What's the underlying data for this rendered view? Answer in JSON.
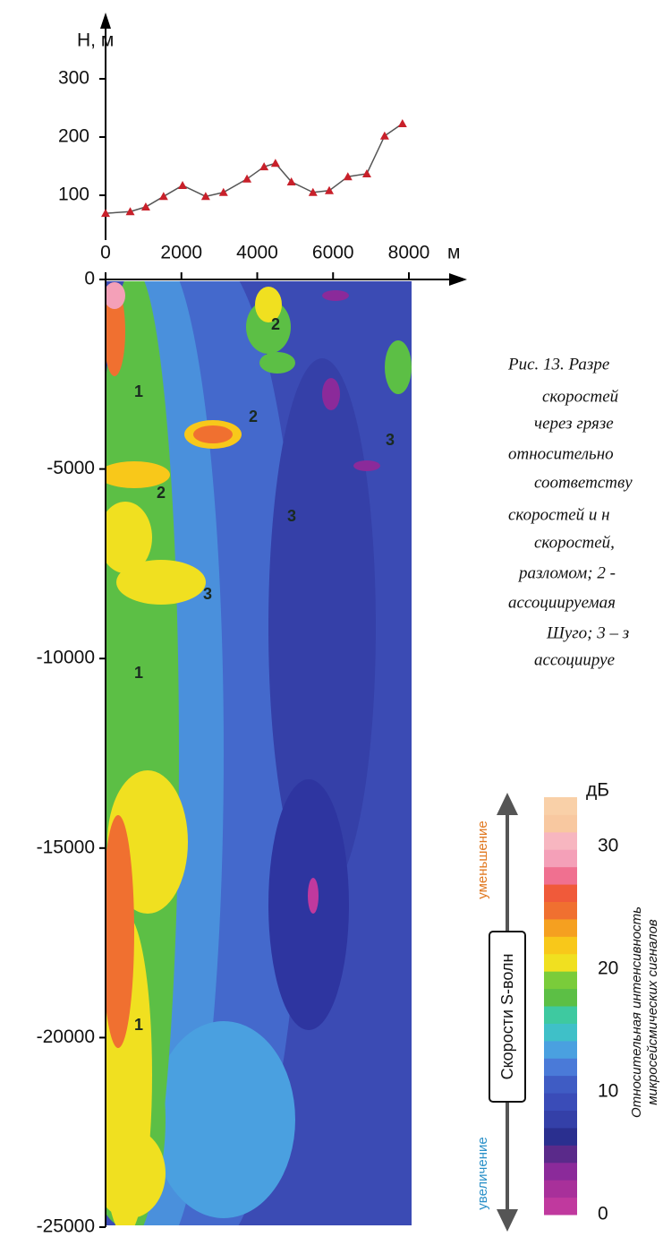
{
  "chart_data": [
    {
      "type": "line",
      "y_label": "H, м",
      "xlim": [
        0,
        8000
      ],
      "ylim": [
        35,
        400
      ],
      "yticks": [
        100,
        200,
        300
      ],
      "x": [
        0,
        650,
        1060,
        1530,
        2030,
        2640,
        3110,
        3730,
        4180,
        4480,
        4900,
        5470,
        5900,
        6390,
        6890,
        7360,
        7830
      ],
      "values": [
        69,
        72,
        80,
        98,
        117,
        98,
        105,
        128,
        149,
        155,
        123,
        105,
        108,
        132,
        137,
        202,
        223
      ],
      "color": "#c8202a"
    },
    {
      "type": "heatmap",
      "x_label": "м",
      "xlim": [
        0,
        8000
      ],
      "xticks": [
        0,
        2000,
        4000,
        6000,
        8000
      ],
      "ylim": [
        -25000,
        0
      ],
      "yticks": [
        0,
        -5000,
        -10000,
        -15000,
        -20000,
        -25000
      ],
      "annotations": [
        "1",
        "2",
        "2",
        "3",
        "2",
        "3",
        "3",
        "1",
        "1"
      ]
    },
    {
      "type": "colorbar",
      "unit": "дБ",
      "ylim": [
        0,
        34
      ],
      "yticks": [
        0,
        10,
        20,
        30
      ],
      "label_lines": [
        "Относительная интенсивность",
        "микросейсмических сигналов"
      ],
      "colors": [
        "#c0399e",
        "#a8309a",
        "#8b2a9a",
        "#5a2a8a",
        "#2a2f8f",
        "#3440a8",
        "#3a4cb8",
        "#3f5cc4",
        "#4a7ad8",
        "#4aa0e0",
        "#3fc0c8",
        "#3ec9a0",
        "#5cbf45",
        "#7acc3a",
        "#f0e020",
        "#f8c81a",
        "#f5a020",
        "#f07030",
        "#f05a3a",
        "#f07090",
        "#f4a0b8",
        "#f7b6c0",
        "#f8c8a0",
        "#f9d0a8"
      ]
    }
  ],
  "legend": {
    "arrow_label": "Скорости S-волн",
    "top_label": "уменьшение",
    "bottom_label": "увеличение"
  },
  "caption_lines": [
    "Рис. 13. Разре",
    "скоростей",
    "через грязе",
    "относительно",
    "соответству",
    "скоростей и н",
    "скоростей,",
    "разломом; 2 -",
    "ассоциируемая",
    "Шуго; 3 – з",
    "ассоциируе"
  ]
}
